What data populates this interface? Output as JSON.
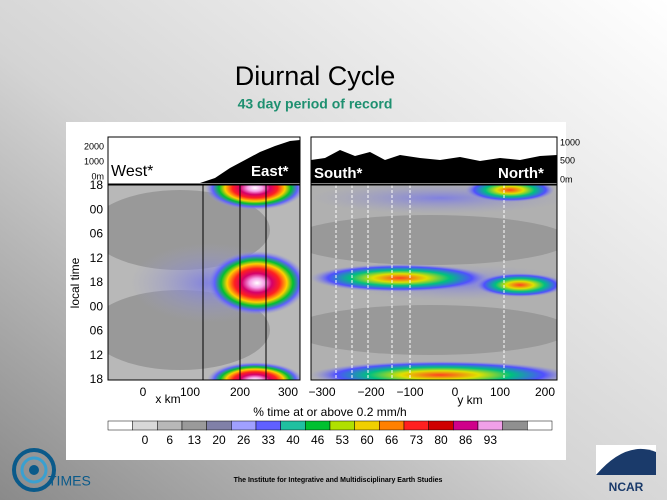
{
  "header": {
    "title": "Diurnal Cycle",
    "subtitle": "43 day period of record"
  },
  "figure": {
    "left": {
      "terrain_ticks": [
        "2000",
        "1000",
        "0m"
      ],
      "west": "West*",
      "east": "East*",
      "time_ticks": [
        "18",
        "00",
        "06",
        "12",
        "18",
        "00",
        "06",
        "12",
        "18"
      ],
      "time_label": "local time",
      "x_ticks": [
        "0",
        "100",
        "200",
        "300"
      ],
      "x_label": "x km"
    },
    "right": {
      "terrain_ticks": [
        "1000",
        "500",
        "0m"
      ],
      "south": "South*",
      "north": "North*",
      "x_ticks": [
        "−300",
        "−200",
        "−100",
        "0",
        "100",
        "200"
      ],
      "x_label": "y km"
    },
    "caption": "% time at or above 0.2 mm/h",
    "colorbar_labels": [
      "0",
      "6",
      "13",
      "20",
      "26",
      "33",
      "40",
      "46",
      "53",
      "60",
      "66",
      "73",
      "80",
      "86",
      "93"
    ]
  },
  "footer": {
    "institute": "The Institute for Integrative and Multidisciplinary Earth Studies",
    "logo_left": "TIMES",
    "logo_right": "NCAR"
  }
}
